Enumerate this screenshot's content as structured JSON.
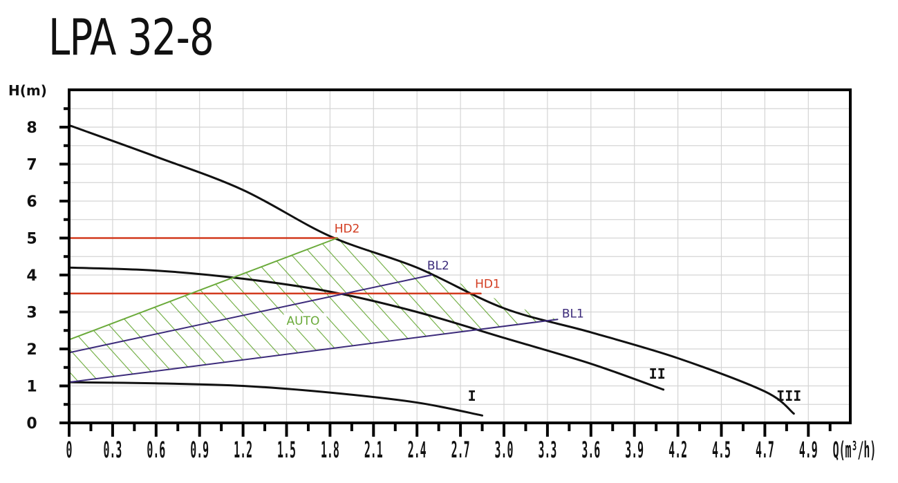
{
  "title": "LPA 32-8",
  "chart_data": {
    "type": "line",
    "title": "LPA 32-8",
    "xlabel": "Q(m³/h)",
    "ylabel": "H(m)",
    "xlim": [
      0,
      5.4
    ],
    "ylim": [
      0,
      9
    ],
    "grid": true,
    "x_tick_labels": [
      "0",
      "0.3",
      "0.6",
      "0.9",
      "1.2",
      "1.5",
      "1.8",
      "2.1",
      "2.4",
      "2.7",
      "3.0",
      "3.3",
      "3.6",
      "3.9",
      "4.2",
      "4.5",
      "4.7",
      "4.9"
    ],
    "y_tick_labels": [
      "0",
      "1",
      "2",
      "3",
      "4",
      "5",
      "6",
      "7",
      "8"
    ],
    "series": [
      {
        "name": "I",
        "color": "#111111",
        "x": [
          0,
          0.6,
          1.2,
          1.8,
          2.4,
          2.85
        ],
        "y": [
          1.1,
          1.07,
          1.0,
          0.82,
          0.55,
          0.2
        ]
      },
      {
        "name": "II",
        "color": "#111111",
        "x": [
          0,
          0.6,
          1.2,
          1.8,
          2.4,
          3.0,
          3.6,
          4.1
        ],
        "y": [
          4.2,
          4.12,
          3.9,
          3.55,
          3.0,
          2.3,
          1.6,
          0.9
        ]
      },
      {
        "name": "III",
        "color": "#111111",
        "x": [
          0,
          0.6,
          1.2,
          1.8,
          2.4,
          3.0,
          3.6,
          4.2,
          4.8,
          5.0
        ],
        "y": [
          8.05,
          7.2,
          6.3,
          5.05,
          4.2,
          3.1,
          2.45,
          1.75,
          0.85,
          0.25
        ]
      },
      {
        "name": "HD2",
        "color": "#d23a1e",
        "x": [
          0,
          1.85
        ],
        "y": [
          5.0,
          5.0
        ]
      },
      {
        "name": "HD1",
        "color": "#d23a1e",
        "x": [
          0,
          2.84
        ],
        "y": [
          3.5,
          3.5
        ]
      },
      {
        "name": "BL2",
        "color": "#3b2a7a",
        "x": [
          0,
          2.5
        ],
        "y": [
          1.9,
          4.0
        ]
      },
      {
        "name": "BL1",
        "color": "#3b2a7a",
        "x": [
          0,
          3.37
        ],
        "y": [
          1.1,
          2.8
        ]
      },
      {
        "name": "AUTO upper",
        "color": "#6aaa3a",
        "x": [
          0,
          1.85
        ],
        "y": [
          2.25,
          5.0
        ]
      }
    ],
    "annotations": [
      {
        "text": "HD2",
        "x": 1.83,
        "y": 5.15,
        "color": "#d23a1e"
      },
      {
        "text": "HD1",
        "x": 2.8,
        "y": 3.65,
        "color": "#d23a1e"
      },
      {
        "text": "BL2",
        "x": 2.47,
        "y": 4.15,
        "color": "#3b2a7a"
      },
      {
        "text": "BL1",
        "x": 3.4,
        "y": 2.85,
        "color": "#3b2a7a"
      },
      {
        "text": "AUTO",
        "x": 1.5,
        "y": 2.65,
        "color": "#6aaa3a"
      },
      {
        "text": "I",
        "x": 2.75,
        "y": 0.6,
        "color": "#111111"
      },
      {
        "text": "II",
        "x": 4.0,
        "y": 1.2,
        "color": "#111111"
      },
      {
        "text": "III",
        "x": 4.88,
        "y": 0.6,
        "color": "#111111"
      }
    ],
    "auto_region": {
      "description": "Hatched green region bounded by AUTO upper line, curve III, BL1 line and the H axis",
      "color": "#6aaa3a"
    }
  },
  "colors": {
    "red": "#d23a1e",
    "green": "#6aaa3a",
    "purple": "#3b2a7a",
    "black": "#111111",
    "grid": "#d4d4d4"
  }
}
